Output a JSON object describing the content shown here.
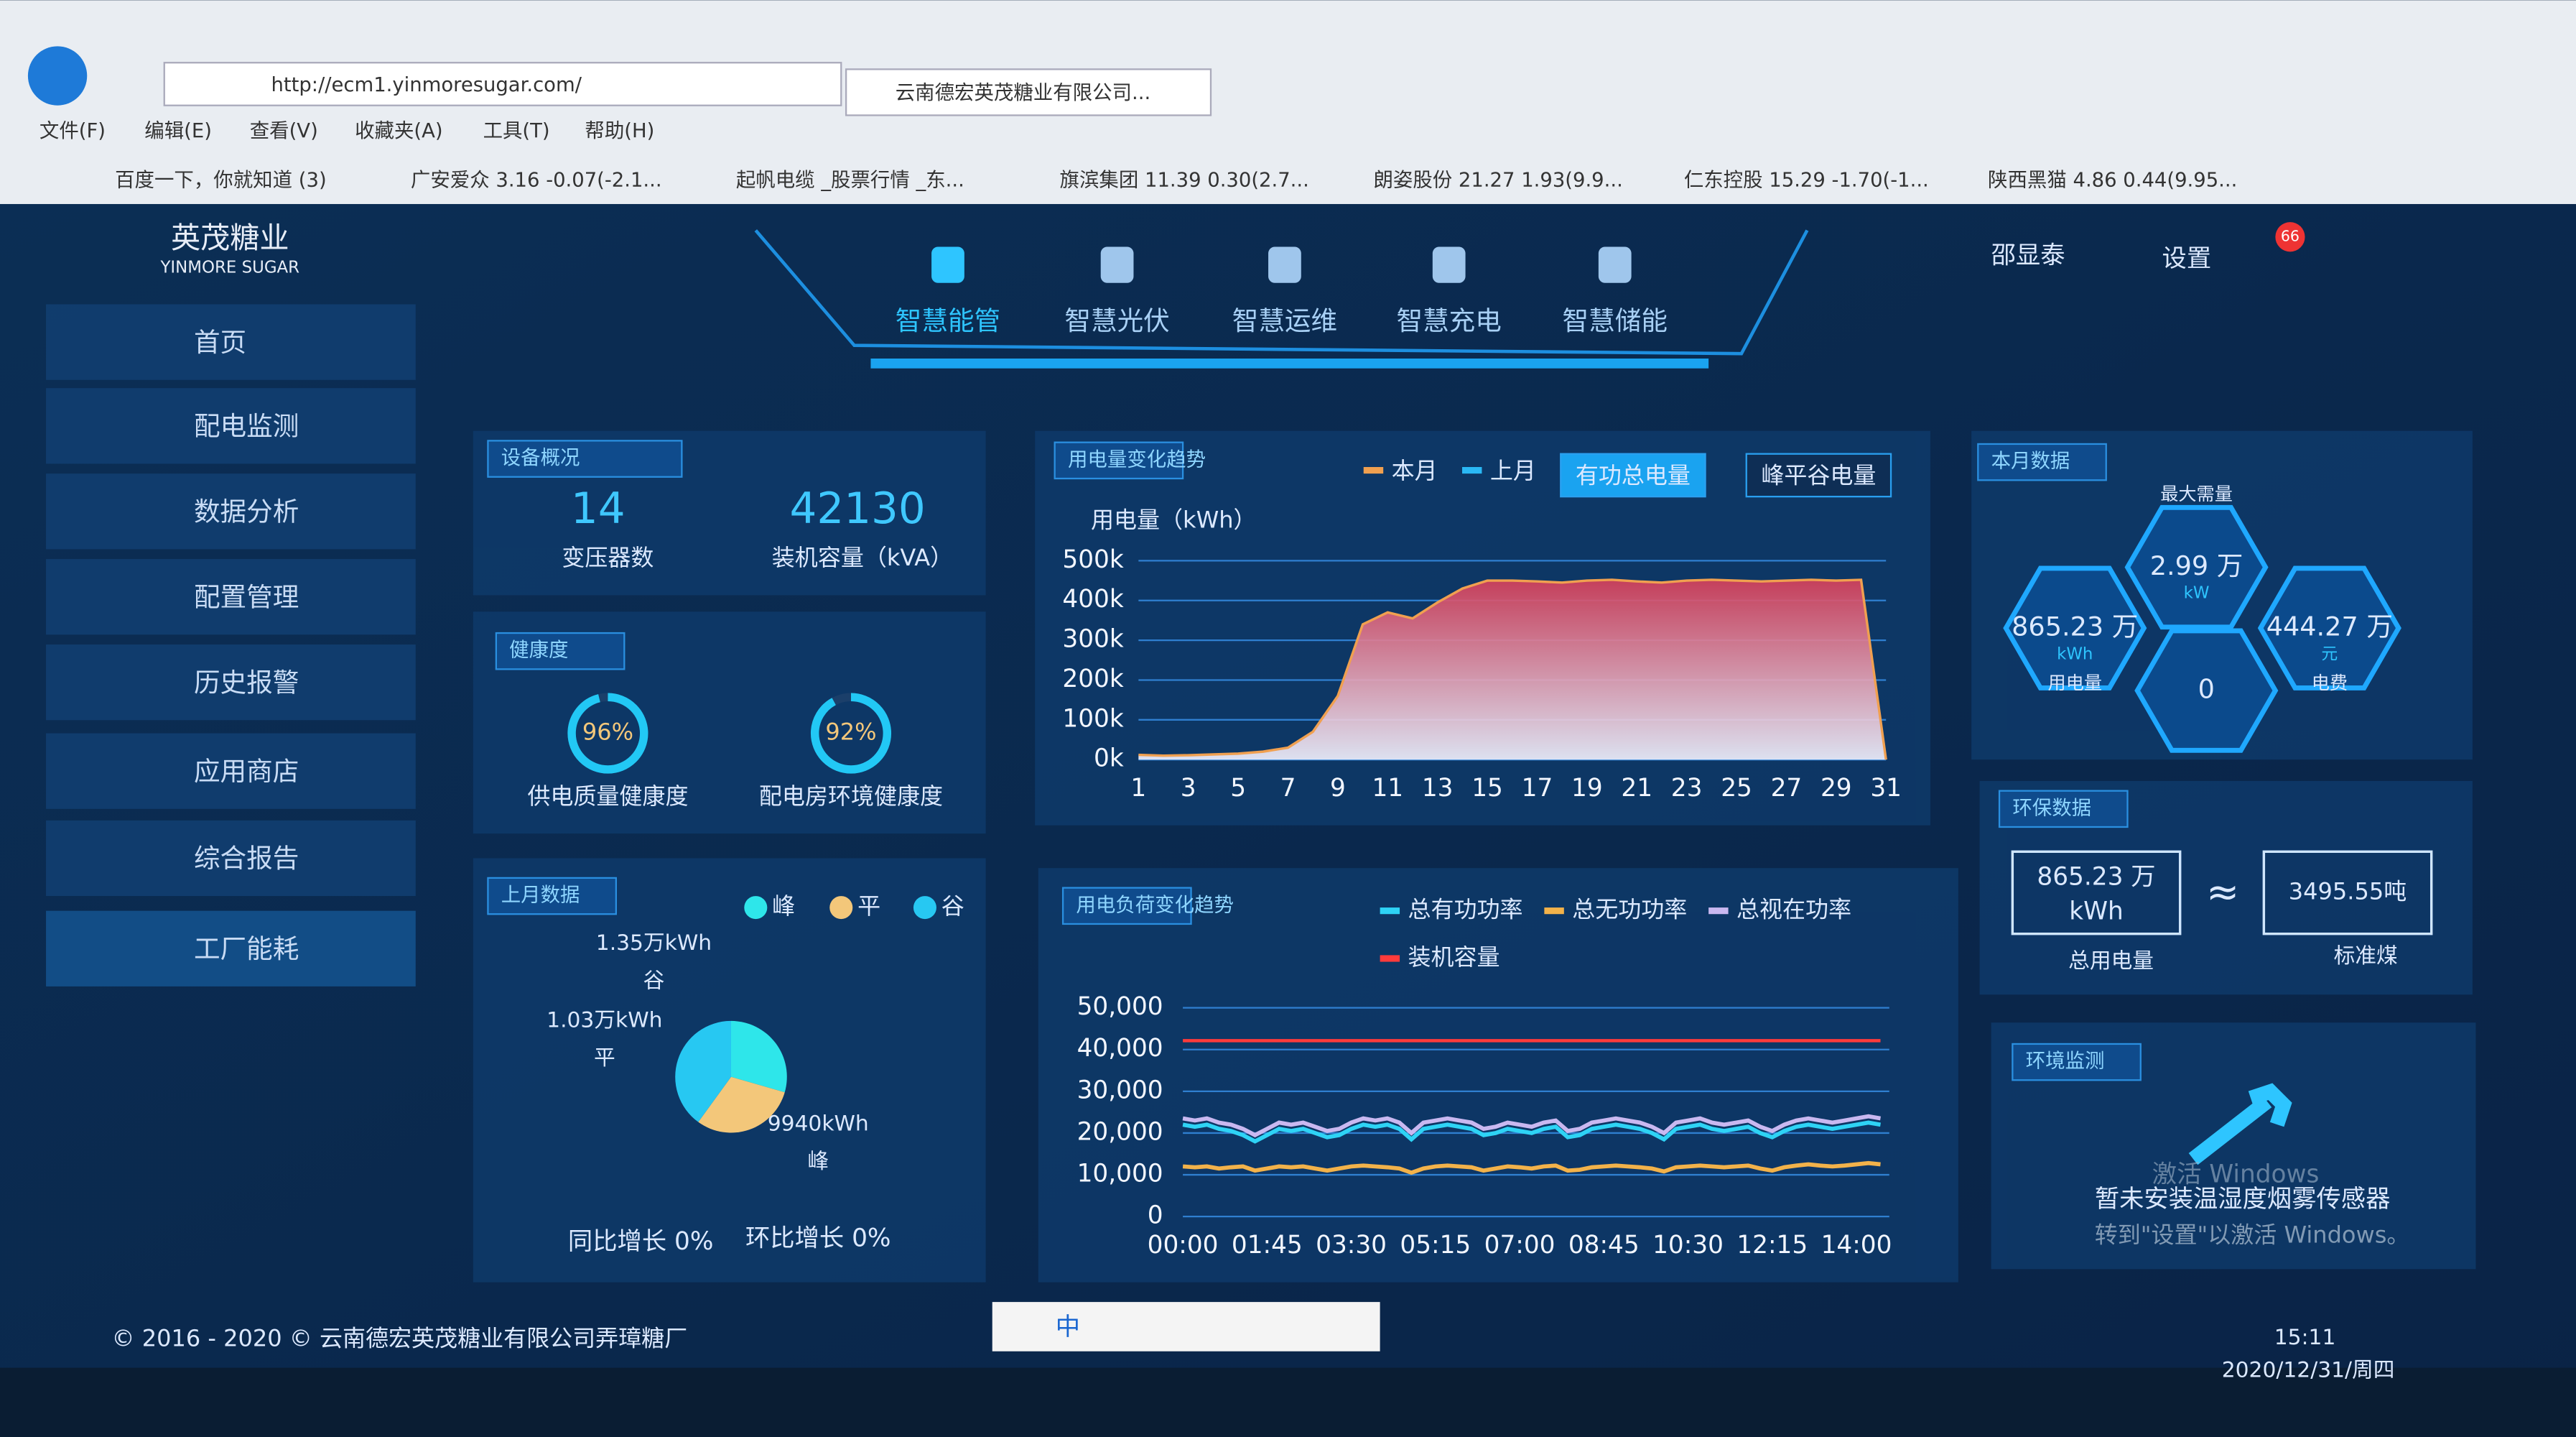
{
  "browser": {
    "url": "http://ecm1.yinmoresugar.com/",
    "tab_title": "云南德宏英茂糖业有限公司...",
    "menu": [
      "文件(F)",
      "编辑(E)",
      "查看(V)",
      "收藏夹(A)",
      "工具(T)",
      "帮助(H)"
    ],
    "favorites": [
      "百度一下，你就知道 (3)",
      "广安爱众 3.16 -0.07(-2.1...",
      "起帆电缆 _股票行情 _东...",
      "旗滨集团 11.39 0.30(2.7...",
      "朗姿股份 21.27 1.93(9.9...",
      "仁东控股 15.29 -1.70(-1...",
      "陕西黑猫 4.86 0.44(9.95..."
    ]
  },
  "app": {
    "logo_cn": "英茂糖业",
    "logo_en": "YINMORE SUGAR",
    "nav": [
      "智慧能管",
      "智慧光伏",
      "智慧运维",
      "智慧充电",
      "智慧储能"
    ],
    "user": "邵显泰",
    "settings": "设置",
    "badge": "66",
    "sidebar": [
      "首页",
      "配电监测",
      "数据分析",
      "配置管理",
      "历史报警",
      "应用商店",
      "综合报告",
      "工厂能耗"
    ]
  },
  "device_overview": {
    "title": "设备概况",
    "transformer_count": "14",
    "transformer_label": "变压器数",
    "capacity": "42130",
    "capacity_label": "装机容量（kVA）"
  },
  "health": {
    "title": "健康度",
    "gauges": [
      {
        "value": 96,
        "value_label": "96%",
        "label": "供电质量健康度"
      },
      {
        "value": 92,
        "value_label": "92%",
        "label": "配电房环境健康度"
      }
    ]
  },
  "last_month": {
    "type": "pie",
    "title": "上月数据",
    "series": [
      {
        "name": "峰",
        "color": "#2ee6ea",
        "value": 9940,
        "value_label": "9940kWh"
      },
      {
        "name": "平",
        "color": "#f3c77a",
        "value": 10300,
        "value_label": "1.03万kWh"
      },
      {
        "name": "谷",
        "color": "#27c8f2",
        "value": 13500,
        "value_label": "1.35万kWh"
      }
    ],
    "growth": [
      "同比增长 0%",
      "环比增长 0%"
    ]
  },
  "usage_trend": {
    "type": "line",
    "title": "用电量变化趋势",
    "y_label": "用电量（kWh）",
    "buttons": [
      "有功总电量",
      "峰平谷电量"
    ],
    "x": [
      1,
      2,
      3,
      4,
      5,
      6,
      7,
      8,
      9,
      10,
      11,
      12,
      13,
      14,
      15,
      16,
      17,
      18,
      19,
      20,
      21,
      22,
      23,
      24,
      25,
      26,
      27,
      28,
      29,
      30,
      31
    ],
    "xlim": [
      1,
      31
    ],
    "xticks": [
      1,
      3,
      5,
      7,
      9,
      11,
      13,
      15,
      17,
      19,
      21,
      23,
      25,
      27,
      29,
      31
    ],
    "ylim": [
      0,
      500000
    ],
    "yticks": [
      {
        "value": 0,
        "label": "0k"
      },
      {
        "value": 100000,
        "label": "100k"
      },
      {
        "value": 200000,
        "label": "200k"
      },
      {
        "value": 300000,
        "label": "300k"
      },
      {
        "value": 400000,
        "label": "400k"
      },
      {
        "value": 500000,
        "label": "500k"
      }
    ],
    "series": [
      {
        "name": "本月",
        "color": "#f0a050",
        "values": [
          12000,
          10000,
          11000,
          13000,
          15000,
          20000,
          30000,
          70000,
          160000,
          340000,
          370000,
          355000,
          395000,
          430000,
          450000,
          450000,
          448000,
          445000,
          450000,
          452000,
          448000,
          445000,
          450000,
          452000,
          450000,
          448000,
          450000,
          452000,
          450000,
          452000,
          0
        ]
      },
      {
        "name": "上月",
        "color": "#2ab8f5",
        "values": [
          null,
          null,
          null,
          null,
          null,
          null,
          null,
          null,
          null,
          null,
          null,
          null,
          null,
          null,
          null,
          null,
          null,
          null,
          null,
          null,
          null,
          null,
          null,
          null,
          null,
          null,
          null,
          null,
          null,
          null,
          null
        ]
      }
    ]
  },
  "load_trend": {
    "type": "line",
    "title": "用电负荷变化趋势",
    "categories": [
      "00:00",
      null,
      null,
      null,
      null,
      null,
      null,
      "01:45",
      null,
      null,
      null,
      null,
      null,
      null,
      "03:30",
      null,
      null,
      null,
      null,
      null,
      null,
      "05:15",
      null,
      null,
      null,
      null,
      null,
      null,
      "07:00",
      null,
      null,
      null,
      null,
      null,
      null,
      "08:45",
      null,
      null,
      null,
      null,
      null,
      null,
      "10:30",
      null,
      null,
      null,
      null,
      null,
      null,
      "12:15",
      null,
      null,
      null,
      null,
      null,
      null,
      "14:00",
      null,
      null
    ],
    "ylim": [
      0,
      50000
    ],
    "yticks": [
      0,
      {
        "value": 10000,
        "label": "10,000"
      },
      {
        "value": 20000,
        "label": "20,000"
      },
      {
        "value": 30000,
        "label": "30,000"
      },
      {
        "value": 40000,
        "label": "40,000"
      },
      {
        "value": 50000,
        "label": "50,000"
      }
    ],
    "series": [
      {
        "name": "总有功功率",
        "color": "#2ed3f5",
        "values": [
          22000,
          21500,
          22000,
          21000,
          20500,
          19500,
          18000,
          19500,
          21000,
          20500,
          21000,
          20000,
          19000,
          19500,
          21000,
          22000,
          21500,
          22000,
          21000,
          18500,
          21000,
          21500,
          22000,
          21500,
          21000,
          19500,
          20000,
          21000,
          20500,
          20000,
          21000,
          21500,
          19000,
          19500,
          21000,
          21500,
          22000,
          21500,
          21000,
          20000,
          18500,
          21000,
          21500,
          22000,
          21000,
          20500,
          21000,
          21500,
          20000,
          19000,
          20500,
          21500,
          22000,
          21500,
          21000,
          21500,
          22000,
          22500,
          22000
        ]
      },
      {
        "name": "总无功功率",
        "color": "#f2b24a",
        "values": [
          12000,
          11800,
          12000,
          11500,
          11800,
          12000,
          11000,
          11500,
          12000,
          11800,
          12000,
          11500,
          11000,
          11500,
          12000,
          12200,
          12000,
          11800,
          11500,
          10500,
          11500,
          12000,
          12200,
          12000,
          11800,
          11000,
          11500,
          12000,
          11800,
          11500,
          12000,
          12200,
          11000,
          11200,
          11800,
          12000,
          12200,
          12000,
          11800,
          11500,
          10800,
          11800,
          12000,
          12200,
          12000,
          11800,
          12000,
          12200,
          11500,
          11000,
          11800,
          12200,
          12500,
          12200,
          12000,
          12200,
          12500,
          12800,
          12500
        ]
      },
      {
        "name": "总视在功率",
        "color": "#c9b8f0",
        "values": [
          23500,
          23000,
          23500,
          22500,
          22000,
          21000,
          19500,
          21000,
          22500,
          22000,
          22500,
          21500,
          20500,
          21000,
          22500,
          23500,
          23000,
          23500,
          22500,
          20000,
          22500,
          23000,
          23500,
          23000,
          22500,
          21000,
          21500,
          22500,
          22000,
          21500,
          22500,
          23000,
          20500,
          21000,
          22500,
          23000,
          23500,
          23000,
          22500,
          21500,
          20000,
          22500,
          23000,
          23500,
          22500,
          22000,
          22500,
          23000,
          21500,
          20500,
          22000,
          23000,
          23500,
          23000,
          22500,
          23000,
          23500,
          24000,
          23500
        ]
      },
      {
        "name": "装机容量",
        "color": "#ff3b3b",
        "values": [
          42130,
          42130,
          42130,
          42130,
          42130,
          42130,
          42130,
          42130,
          42130,
          42130,
          42130,
          42130,
          42130,
          42130,
          42130,
          42130,
          42130,
          42130,
          42130,
          42130,
          42130,
          42130,
          42130,
          42130,
          42130,
          42130,
          42130,
          42130,
          42130,
          42130,
          42130,
          42130,
          42130,
          42130,
          42130,
          42130,
          42130,
          42130,
          42130,
          42130,
          42130,
          42130,
          42130,
          42130,
          42130,
          42130,
          42130,
          42130,
          42130,
          42130,
          42130,
          42130,
          42130,
          42130,
          42130,
          42130,
          42130,
          42130,
          42130
        ]
      }
    ]
  },
  "month_data": {
    "title": "本月数据",
    "cells": [
      {
        "label": "最大需量",
        "value": "2.99 万",
        "unit": "kW"
      },
      {
        "label": "用电量",
        "value": "865.23 万",
        "unit": "kWh"
      },
      {
        "label": "电费",
        "value": "444.27 万",
        "unit": "元"
      },
      {
        "value": "0"
      }
    ]
  },
  "env_data": {
    "title": "环保数据",
    "energy": "865.23 万",
    "energy_unit": "kWh",
    "energy_label": "总用电量",
    "approx": "≈",
    "coal": "3495.55吨",
    "coal_label": "标准煤"
  },
  "env_monitor": {
    "title": "环境监测",
    "message": "暂未安装温湿度烟雾传感器"
  },
  "watermark": [
    "激活 Windows",
    "转到\"设置\"以激活 Windows。"
  ],
  "footer": "© 2016 - 2020 © 云南德宏英茂糖业有限公司弄璋糖厂",
  "ime": "中",
  "taskbar": {
    "time": "15:11",
    "date": "2020/12/31/周四"
  }
}
